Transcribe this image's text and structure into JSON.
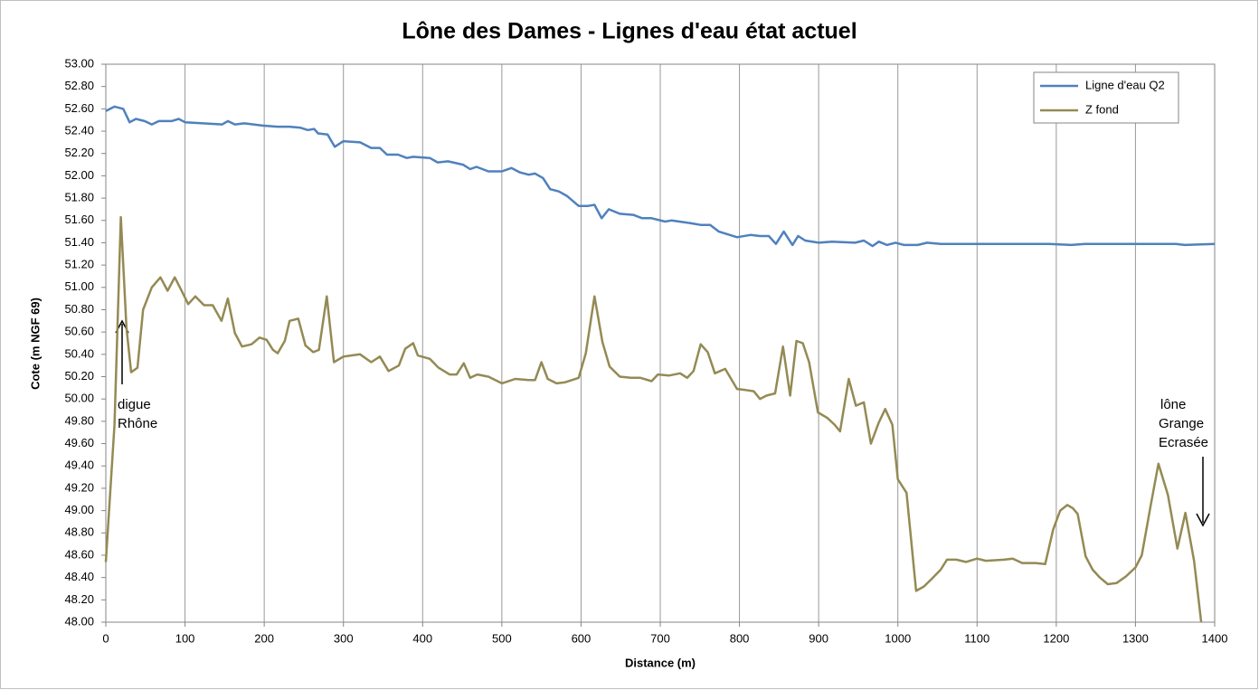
{
  "chart_data": {
    "type": "line",
    "title": "Lône des Dames - Lignes d'eau état actuel",
    "x_label": "Distance (m)",
    "y_label": "Cote (m NGF 69)",
    "xlim": [
      0,
      1400
    ],
    "xticks": [
      0,
      100,
      200,
      300,
      400,
      500,
      600,
      700,
      800,
      900,
      1000,
      1100,
      1200,
      1300,
      1400
    ],
    "ylim": [
      48,
      53
    ],
    "yticks": [
      {
        "value": 48,
        "label": "48.00"
      },
      {
        "value": 48.2,
        "label": "48.20"
      },
      {
        "value": 48.4,
        "label": "48.40"
      },
      {
        "value": 48.6,
        "label": "48.60"
      },
      {
        "value": 48.8,
        "label": "48.80"
      },
      {
        "value": 49,
        "label": "49.00"
      },
      {
        "value": 49.2,
        "label": "49.20"
      },
      {
        "value": 49.4,
        "label": "49.40"
      },
      {
        "value": 49.6,
        "label": "49.60"
      },
      {
        "value": 49.8,
        "label": "49.80"
      },
      {
        "value": 50,
        "label": "50.00"
      },
      {
        "value": 50.2,
        "label": "50.20"
      },
      {
        "value": 50.4,
        "label": "50.40"
      },
      {
        "value": 50.6,
        "label": "50.60"
      },
      {
        "value": 50.8,
        "label": "50.80"
      },
      {
        "value": 51,
        "label": "51.00"
      },
      {
        "value": 51.2,
        "label": "51.20"
      },
      {
        "value": 51.4,
        "label": "51.40"
      },
      {
        "value": 51.6,
        "label": "51.60"
      },
      {
        "value": 51.8,
        "label": "51.80"
      },
      {
        "value": 52,
        "label": "52.00"
      },
      {
        "value": 52.2,
        "label": "52.20"
      },
      {
        "value": 52.4,
        "label": "52.40"
      },
      {
        "value": 52.6,
        "label": "52.60"
      },
      {
        "value": 52.8,
        "label": "52.80"
      },
      {
        "value": 53,
        "label": "53.00"
      }
    ],
    "grid": "x",
    "legend": "upper right",
    "series": [
      {
        "name": "Ligne d'eau Q2",
        "color": "#4f81bd",
        "x": [
          0,
          11,
          22,
          30,
          38,
          49,
          58,
          67,
          83,
          92,
          100,
          123,
          147,
          154,
          163,
          175,
          198,
          217,
          232,
          246,
          255,
          263,
          268,
          280,
          289,
          300,
          321,
          335,
          346,
          355,
          369,
          380,
          388,
          409,
          419,
          432,
          451,
          460,
          468,
          483,
          500,
          512,
          523,
          534,
          542,
          552,
          561,
          572,
          582,
          597,
          609,
          617,
          626,
          635,
          649,
          666,
          677,
          689,
          706,
          714,
          734,
          751,
          763,
          774,
          797,
          814,
          826,
          837,
          846,
          856,
          867,
          874,
          883,
          900,
          917,
          946,
          957,
          968,
          976,
          986,
          997,
          1008,
          1025,
          1037,
          1054,
          1100,
          1191,
          1219,
          1236,
          1294,
          1351,
          1362,
          1400
        ],
        "values": [
          52.58,
          52.62,
          52.6,
          52.48,
          52.51,
          52.49,
          52.46,
          52.49,
          52.49,
          52.51,
          52.48,
          52.47,
          52.46,
          52.49,
          52.46,
          52.47,
          52.45,
          52.44,
          52.44,
          52.43,
          52.41,
          52.42,
          52.38,
          52.37,
          52.26,
          52.31,
          52.3,
          52.25,
          52.25,
          52.19,
          52.19,
          52.16,
          52.17,
          52.16,
          52.12,
          52.13,
          52.1,
          52.06,
          52.08,
          52.04,
          52.04,
          52.07,
          52.03,
          52.01,
          52.02,
          51.98,
          51.88,
          51.86,
          51.82,
          51.73,
          51.73,
          51.74,
          51.62,
          51.7,
          51.66,
          51.65,
          51.62,
          51.62,
          51.59,
          51.6,
          51.58,
          51.56,
          51.56,
          51.5,
          51.45,
          51.47,
          51.46,
          51.46,
          51.39,
          51.5,
          51.38,
          51.46,
          51.42,
          51.4,
          51.41,
          51.4,
          51.42,
          51.37,
          51.41,
          51.38,
          51.4,
          51.38,
          51.38,
          51.4,
          51.39,
          51.39,
          51.39,
          51.38,
          51.39,
          51.39,
          51.39,
          51.38,
          51.39
        ]
      },
      {
        "name": "Z fond",
        "color": "#948a54",
        "x": [
          0,
          11,
          19,
          26,
          32,
          40,
          47,
          58,
          69,
          78,
          87,
          95,
          104,
          113,
          124,
          135,
          146,
          154,
          163,
          172,
          184,
          194,
          203,
          211,
          217,
          226,
          232,
          243,
          252,
          262,
          269,
          279,
          288,
          300,
          321,
          335,
          346,
          357,
          370,
          378,
          388,
          394,
          409,
          420,
          434,
          443,
          452,
          460,
          469,
          483,
          500,
          517,
          534,
          542,
          550,
          558,
          569,
          580,
          597,
          606,
          617,
          627,
          636,
          649,
          663,
          675,
          689,
          697,
          711,
          725,
          734,
          742,
          751,
          760,
          769,
          782,
          797,
          808,
          818,
          826,
          834,
          845,
          855,
          864,
          872,
          880,
          888,
          899,
          911,
          920,
          927,
          938,
          947,
          957,
          966,
          976,
          984,
          993,
          1000,
          1011,
          1023,
          1033,
          1043,
          1054,
          1062,
          1074,
          1086,
          1100,
          1111,
          1134,
          1145,
          1157,
          1174,
          1186,
          1196,
          1205,
          1214,
          1221,
          1227,
          1237,
          1246,
          1255,
          1265,
          1276,
          1288,
          1300,
          1308,
          1319,
          1329,
          1341,
          1353,
          1363,
          1374,
          1383
        ],
        "values": [
          48.54,
          49.77,
          51.63,
          50.64,
          50.24,
          50.28,
          50.8,
          51.0,
          51.09,
          50.97,
          51.09,
          50.98,
          50.85,
          50.92,
          50.84,
          50.84,
          50.7,
          50.9,
          50.59,
          50.47,
          50.49,
          50.55,
          50.53,
          50.44,
          50.41,
          50.52,
          50.7,
          50.72,
          50.48,
          50.42,
          50.44,
          50.92,
          50.33,
          50.38,
          50.4,
          50.33,
          50.38,
          50.25,
          50.3,
          50.45,
          50.5,
          50.39,
          50.36,
          50.28,
          50.22,
          50.22,
          50.32,
          50.19,
          50.22,
          50.2,
          50.14,
          50.18,
          50.17,
          50.17,
          50.33,
          50.18,
          50.14,
          50.15,
          50.19,
          50.41,
          50.92,
          50.51,
          50.29,
          50.2,
          50.19,
          50.19,
          50.16,
          50.22,
          50.21,
          50.23,
          50.19,
          50.25,
          50.49,
          50.42,
          50.23,
          50.27,
          50.09,
          50.08,
          50.07,
          50.0,
          50.03,
          50.05,
          50.47,
          50.03,
          50.52,
          50.5,
          50.33,
          49.88,
          49.83,
          49.77,
          49.71,
          50.18,
          49.94,
          49.97,
          49.6,
          49.79,
          49.91,
          49.77,
          49.28,
          49.16,
          48.28,
          48.32,
          48.39,
          48.47,
          48.56,
          48.56,
          48.54,
          48.57,
          48.55,
          48.56,
          48.57,
          48.53,
          48.53,
          48.52,
          48.83,
          49.0,
          49.05,
          49.02,
          48.97,
          48.59,
          48.47,
          48.4,
          48.34,
          48.35,
          48.41,
          48.49,
          48.6,
          49.04,
          49.42,
          49.14,
          48.66,
          48.98,
          48.55,
          48.0
        ]
      }
    ],
    "annotations": [
      [
        "digue",
        "Rhône"
      ],
      [
        "lône",
        "Grange",
        "Ecrasée"
      ]
    ]
  }
}
